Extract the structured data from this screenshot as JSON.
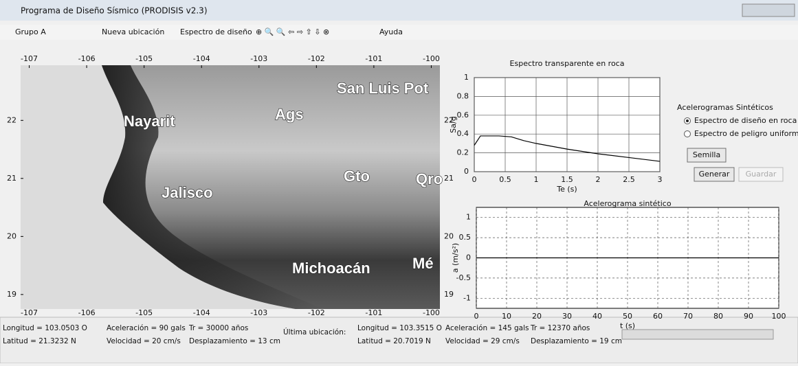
{
  "window": {
    "title": "Programa de Diseño Sísmico (PRODISIS v2.3)"
  },
  "toolbar": {
    "group": "Grupo A",
    "items": [
      "Nueva ubicación",
      "Espectro de diseño",
      "Ayuda"
    ]
  },
  "map": {
    "xlim": [
      -107.15,
      -99.85
    ],
    "ylim": [
      18.75,
      22.95
    ],
    "xticks": [
      -107,
      -106,
      -105,
      -104,
      -103,
      -102,
      -101,
      -100
    ],
    "yticks": [
      19,
      20,
      21,
      22
    ],
    "places": [
      "San Luis Pot",
      "Ags",
      "Nayarit",
      "Jalisco",
      "Gto",
      "Qro",
      "Michoacán",
      "Mé"
    ]
  },
  "chart_data": [
    {
      "type": "line",
      "title": "Espectro transparente en roca",
      "x_label": "Te (s)",
      "y_label": "Sa/g",
      "xlim": [
        0,
        3
      ],
      "ylim": [
        0,
        1
      ],
      "xticks": [
        0,
        0.5,
        1,
        1.5,
        2,
        2.5,
        3
      ],
      "yticks": [
        0,
        0.2,
        0.4,
        0.6,
        0.8,
        1
      ],
      "grid": true,
      "series": [
        {
          "color": "#000000",
          "x": [
            0,
            0.1,
            0.2,
            0.4,
            0.6,
            0.8,
            1.0,
            1.5,
            2.0,
            2.5,
            3.0
          ],
          "values": [
            0.28,
            0.38,
            0.38,
            0.38,
            0.37,
            0.33,
            0.3,
            0.24,
            0.19,
            0.15,
            0.11
          ]
        }
      ]
    },
    {
      "type": "line",
      "title": "Acelerograma sintético",
      "x_label": "t (s)",
      "y_label": "a (m/s²)",
      "xlim": [
        0,
        100
      ],
      "ylim": [
        -1.25,
        1.25
      ],
      "xticks": [
        0,
        10,
        20,
        30,
        40,
        50,
        60,
        70,
        80,
        90,
        100
      ],
      "yticks": [
        -1,
        -0.5,
        0,
        0.5,
        1
      ],
      "grid": true,
      "series": [
        {
          "color": "#000000",
          "x": [
            0,
            100
          ],
          "values": [
            0,
            0
          ]
        }
      ]
    }
  ],
  "panel": {
    "title": "Acelerogramas Sintéticos",
    "options": [
      "Espectro de diseño en roca",
      "Espectro de peligro uniforme"
    ],
    "buttons": [
      "Semilla",
      "Generar",
      "Guardar"
    ]
  },
  "status": {
    "current": [
      "Longitud = 103.0503 O",
      "Latitud = 21.3232 N",
      "Aceleración = 90 gals",
      "Velocidad = 20 cm/s",
      "Tr = 30000 años",
      "Desplazamiento = 13 cm"
    ],
    "last_label": "Última ubicación:",
    "last": [
      "Longitud = 103.3515 O",
      "Latitud = 20.7019 N",
      "Aceleración = 145 gals",
      "Velocidad = 29 cm/s",
      "Tr = 12370 años",
      "Desplazamiento = 19 cm"
    ]
  }
}
